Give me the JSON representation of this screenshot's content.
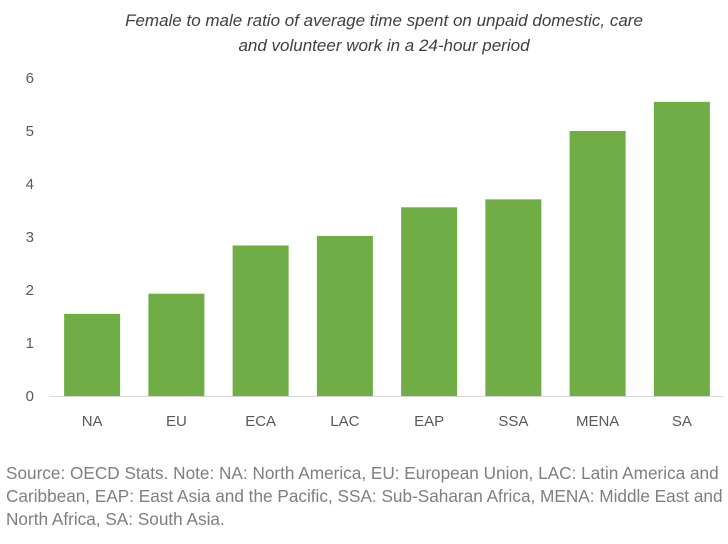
{
  "chart_data": {
    "type": "bar",
    "title": "Female to male ratio of average time spent on unpaid domestic, care\nand volunteer work in a 24-hour period",
    "categories": [
      "NA",
      "EU",
      "ECA",
      "LAC",
      "EAP",
      "SSA",
      "MENA",
      "SA"
    ],
    "values": [
      1.55,
      1.93,
      2.84,
      3.02,
      3.56,
      3.71,
      5.0,
      5.55
    ],
    "ylim": [
      0,
      6
    ],
    "yticks": [
      "0",
      "1",
      "2",
      "3",
      "4",
      "5",
      "6"
    ],
    "grid": false,
    "legend": "none",
    "bar_color": "#70ad47",
    "axis_color": "#d9d9d9"
  },
  "source": "Source: OECD Stats. Note: NA: North America, EU: European Union, LAC: Latin America and Caribbean, EAP: East Asia and the Pacific, SSA: Sub-Saharan Africa, MENA: Middle East and North Africa, SA: South Asia."
}
